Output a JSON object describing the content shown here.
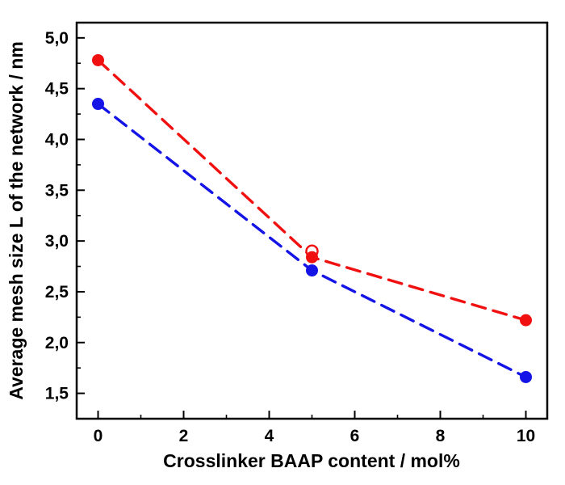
{
  "chart_data": {
    "type": "scatter",
    "title": "",
    "xlabel": "Crosslinker BAAP content / mol%",
    "ylabel": "Average mesh size L of the network / nm",
    "xlim": [
      -0.5,
      10.5
    ],
    "ylim": [
      1.25,
      5.15
    ],
    "grid": false,
    "legend": "none",
    "x_ticks": [
      0,
      2,
      4,
      6,
      8,
      10
    ],
    "x_tick_labels": [
      "0",
      "2",
      "4",
      "6",
      "8",
      "10"
    ],
    "x_minor_ticks": [
      1,
      3,
      5,
      7,
      9
    ],
    "y_ticks": [
      1.5,
      2.0,
      2.5,
      3.0,
      3.5,
      4.0,
      4.5,
      5.0
    ],
    "y_tick_labels": [
      "1,5",
      "2,0",
      "2,5",
      "3,0",
      "3,5",
      "4,0",
      "4,5",
      "5,0"
    ],
    "y_minor_ticks": [
      1.75,
      2.25,
      2.75,
      3.25,
      3.75,
      4.25,
      4.75
    ],
    "series": [
      {
        "name": "red-series",
        "color": "#f01010",
        "line_style": "dashed",
        "marker": "filled-circle",
        "x": [
          0,
          5,
          10
        ],
        "y": [
          4.78,
          2.84,
          2.22
        ]
      },
      {
        "name": "blue-series",
        "color": "#1414e6",
        "line_style": "dashed",
        "marker": "filled-circle",
        "x": [
          0,
          5,
          10
        ],
        "y": [
          4.35,
          2.71,
          1.66
        ]
      }
    ],
    "extra_points": [
      {
        "series": "red-series",
        "marker": "open-circle",
        "color": "#f01010",
        "x": 5,
        "y": 2.9
      }
    ],
    "axis_color": "#000000"
  }
}
